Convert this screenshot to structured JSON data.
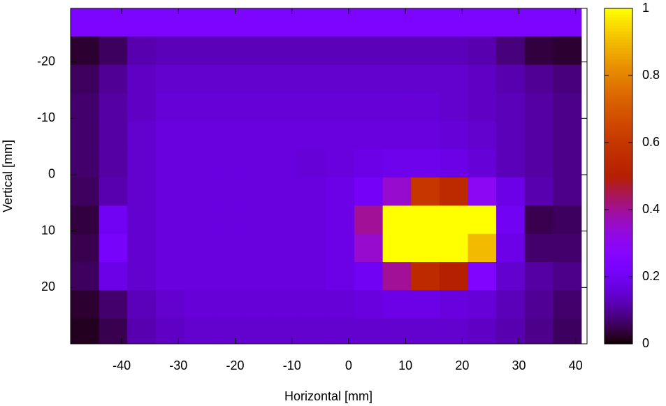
{
  "chart_data": {
    "type": "heatmap",
    "xlabel": "Horizontal [mm]",
    "ylabel": "Vertical [mm]",
    "xlim": [
      -49,
      42
    ],
    "ylim": [
      -29.5,
      30
    ],
    "y_reversed": true,
    "xticks": [
      -40,
      -30,
      -20,
      -10,
      0,
      10,
      20,
      30,
      40
    ],
    "yticks": [
      -20,
      -10,
      0,
      10,
      20
    ],
    "colormap": "gnuplot",
    "clim": [
      0,
      1
    ],
    "cticks": [
      0,
      0.2,
      0.4,
      0.6,
      0.8,
      1
    ],
    "x": [
      -46.5,
      -41.5,
      -36.5,
      -31.5,
      -26.5,
      -21.5,
      -16.5,
      -11.5,
      -6.5,
      -1.5,
      3.5,
      8.5,
      13.5,
      18.5,
      23.5,
      28.5,
      33.5,
      38.5
    ],
    "y": [
      -27,
      -22,
      -17,
      -12,
      -7,
      -2,
      3,
      8,
      13,
      18,
      23,
      28
    ],
    "z": [
      [
        0.24,
        0.24,
        0.24,
        0.24,
        0.24,
        0.24,
        0.24,
        0.24,
        0.24,
        0.24,
        0.24,
        0.24,
        0.24,
        0.24,
        0.24,
        0.24,
        0.24,
        0.24
      ],
      [
        0.03,
        0.06,
        0.12,
        0.13,
        0.13,
        0.13,
        0.13,
        0.13,
        0.13,
        0.13,
        0.13,
        0.13,
        0.13,
        0.13,
        0.12,
        0.08,
        0.04,
        0.03
      ],
      [
        0.06,
        0.1,
        0.14,
        0.15,
        0.15,
        0.15,
        0.15,
        0.15,
        0.15,
        0.15,
        0.15,
        0.15,
        0.15,
        0.15,
        0.14,
        0.12,
        0.1,
        0.08
      ],
      [
        0.07,
        0.11,
        0.14,
        0.16,
        0.16,
        0.16,
        0.16,
        0.16,
        0.16,
        0.16,
        0.16,
        0.16,
        0.16,
        0.15,
        0.14,
        0.13,
        0.11,
        0.09
      ],
      [
        0.07,
        0.11,
        0.15,
        0.17,
        0.17,
        0.17,
        0.17,
        0.17,
        0.17,
        0.17,
        0.17,
        0.17,
        0.17,
        0.16,
        0.15,
        0.13,
        0.11,
        0.09
      ],
      [
        0.07,
        0.11,
        0.15,
        0.17,
        0.17,
        0.17,
        0.17,
        0.17,
        0.16,
        0.17,
        0.18,
        0.19,
        0.19,
        0.18,
        0.16,
        0.13,
        0.11,
        0.09
      ],
      [
        0.06,
        0.12,
        0.15,
        0.17,
        0.17,
        0.17,
        0.17,
        0.17,
        0.17,
        0.18,
        0.21,
        0.35,
        0.6,
        0.55,
        0.3,
        0.18,
        0.12,
        0.09
      ],
      [
        0.04,
        0.2,
        0.15,
        0.17,
        0.17,
        0.17,
        0.17,
        0.17,
        0.17,
        0.18,
        0.4,
        1,
        1,
        1,
        1,
        0.2,
        0.05,
        0.06
      ],
      [
        0.05,
        0.22,
        0.15,
        0.17,
        0.17,
        0.17,
        0.17,
        0.17,
        0.17,
        0.18,
        0.35,
        1,
        1,
        1,
        0.9,
        0.18,
        0.07,
        0.07
      ],
      [
        0.06,
        0.18,
        0.15,
        0.17,
        0.17,
        0.17,
        0.17,
        0.17,
        0.17,
        0.18,
        0.2,
        0.4,
        0.55,
        0.5,
        0.25,
        0.15,
        0.11,
        0.09
      ],
      [
        0.03,
        0.07,
        0.13,
        0.15,
        0.16,
        0.16,
        0.16,
        0.16,
        0.16,
        0.16,
        0.17,
        0.18,
        0.18,
        0.17,
        0.16,
        0.13,
        0.1,
        0.07
      ],
      [
        0.02,
        0.05,
        0.12,
        0.14,
        0.15,
        0.15,
        0.15,
        0.15,
        0.15,
        0.15,
        0.15,
        0.15,
        0.15,
        0.15,
        0.14,
        0.12,
        0.09,
        0.06
      ]
    ]
  }
}
